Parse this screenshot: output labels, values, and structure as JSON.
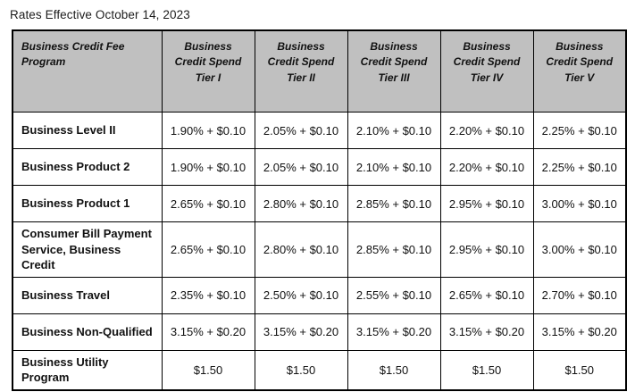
{
  "title": "Rates Effective October 14, 2023",
  "table": {
    "header_bg": "#c0c0c0",
    "border_color": "#000000",
    "columns": [
      "Business Credit Fee Program",
      "Business Credit Spend Tier I",
      "Business Credit Spend Tier II",
      "Business Credit Spend Tier III",
      "Business Credit Spend Tier IV",
      "Business Credit Spend Tier V"
    ],
    "rows": [
      {
        "program": "Business Level II",
        "values": [
          "1.90% + $0.10",
          "2.05% + $0.10",
          "2.10% + $0.10",
          "2.20% + $0.10",
          "2.25% + $0.10"
        ]
      },
      {
        "program": "Business Product 2",
        "values": [
          "1.90% + $0.10",
          "2.05% + $0.10",
          "2.10% + $0.10",
          "2.20% + $0.10",
          "2.25% + $0.10"
        ]
      },
      {
        "program": "Business Product 1",
        "values": [
          "2.65% + $0.10",
          "2.80% + $0.10",
          "2.85% + $0.10",
          "2.95% + $0.10",
          "3.00% + $0.10"
        ]
      },
      {
        "program": "Consumer Bill Payment Service, Business Credit",
        "values": [
          "2.65% + $0.10",
          "2.80% + $0.10",
          "2.85% + $0.10",
          "2.95% + $0.10",
          "3.00% + $0.10"
        ]
      },
      {
        "program": "Business Travel",
        "values": [
          "2.35% + $0.10",
          "2.50% + $0.10",
          "2.55% + $0.10",
          "2.65% + $0.10",
          "2.70% + $0.10"
        ]
      },
      {
        "program": "Business Non-Qualified",
        "values": [
          "3.15% + $0.20",
          "3.15% + $0.20",
          "3.15% + $0.20",
          "3.15% + $0.20",
          "3.15% + $0.20"
        ]
      },
      {
        "program": "Business Utility Program",
        "values": [
          "$1.50",
          "$1.50",
          "$1.50",
          "$1.50",
          "$1.50"
        ]
      }
    ]
  }
}
